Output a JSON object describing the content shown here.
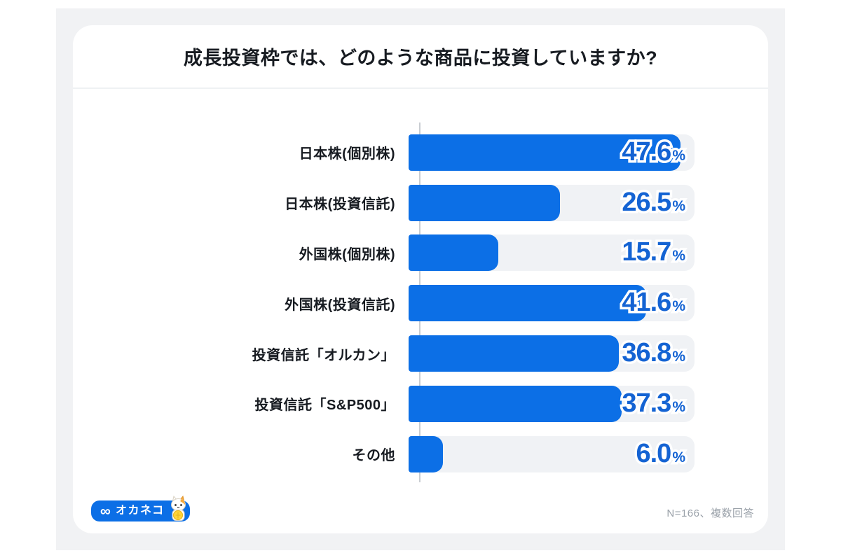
{
  "title": "成長投資枠では、どのような商品に投資していますか?",
  "footnote": "N=166、複数回答",
  "logo": {
    "mark": "∞",
    "text": "オカネコ",
    "mascot": "cat-mascot"
  },
  "colors": {
    "bar": "#0c6fe6",
    "track": "#f0f2f5",
    "value_text": "#1463d3",
    "page_bg": "#f1f2f4",
    "card_bg": "#ffffff",
    "label_text": "#171b21",
    "footnote_text": "#9aa1a9",
    "axis": "#c9cdd2",
    "divider": "#eff1f3",
    "logo_bg": "#0c6fe6",
    "coin": "#ffd43a",
    "cat_orange": "#f5a93c"
  },
  "chart_data": {
    "type": "bar",
    "orientation": "horizontal",
    "title": "成長投資枠では、どのような商品に投資していますか?",
    "categories": [
      "日本株(個別株)",
      "日本株(投資信託)",
      "外国株(個別株)",
      "外国株(投資信託)",
      "投資信託「オルカン」",
      "投資信託「S&P500」",
      "その他"
    ],
    "values": [
      47.6,
      26.5,
      15.7,
      41.6,
      36.8,
      37.3,
      6.0
    ],
    "value_labels": [
      "47.6",
      "26.5",
      "15.7",
      "41.6",
      "36.8",
      "37.3",
      "6.0"
    ],
    "value_suffix": "%",
    "xlim": [
      0,
      50
    ],
    "xlabel": "",
    "ylabel": "",
    "grid": false,
    "legend": "none",
    "note": "N=166、複数回答"
  }
}
